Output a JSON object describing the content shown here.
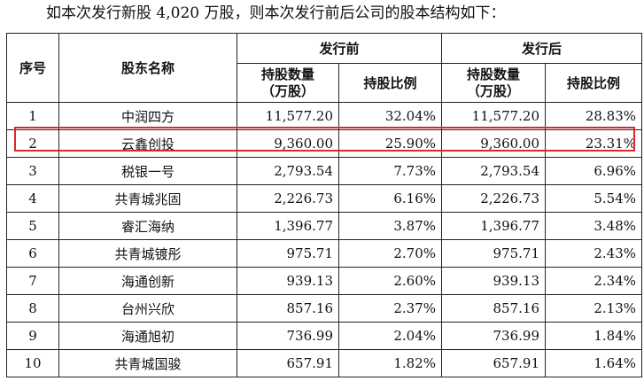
{
  "intro_text": "如本次发行新股 4,020 万股，则本次发行前后公司的股本结构如下：",
  "table": {
    "headers": {
      "seq": "序号",
      "name": "股东名称",
      "before": "发行前",
      "after": "发行后",
      "qty": "持股数量\n（万股）",
      "ratio": "持股比例"
    },
    "rows": [
      {
        "seq": "1",
        "name": "中润四方",
        "before_qty": "11,577.20",
        "before_ratio": "32.04%",
        "after_qty": "11,577.20",
        "after_ratio": "28.83%"
      },
      {
        "seq": "2",
        "name": "云鑫创投",
        "before_qty": "9,360.00",
        "before_ratio": "25.90%",
        "after_qty": "9,360.00",
        "after_ratio": "23.31%"
      },
      {
        "seq": "3",
        "name": "税银一号",
        "before_qty": "2,793.54",
        "before_ratio": "7.73%",
        "after_qty": "2,793.54",
        "after_ratio": "6.96%"
      },
      {
        "seq": "4",
        "name": "共青城兆固",
        "before_qty": "2,226.73",
        "before_ratio": "6.16%",
        "after_qty": "2,226.73",
        "after_ratio": "5.54%"
      },
      {
        "seq": "5",
        "name": "睿汇海纳",
        "before_qty": "1,396.77",
        "before_ratio": "3.87%",
        "after_qty": "1,396.77",
        "after_ratio": "3.48%"
      },
      {
        "seq": "6",
        "name": "共青城镀彤",
        "before_qty": "975.71",
        "before_ratio": "2.70%",
        "after_qty": "975.71",
        "after_ratio": "2.43%"
      },
      {
        "seq": "7",
        "name": "海通创新",
        "before_qty": "939.13",
        "before_ratio": "2.60%",
        "after_qty": "939.13",
        "after_ratio": "2.34%"
      },
      {
        "seq": "8",
        "name": "台州兴欣",
        "before_qty": "857.16",
        "before_ratio": "2.37%",
        "after_qty": "857.16",
        "after_ratio": "2.13%"
      },
      {
        "seq": "9",
        "name": "海通旭初",
        "before_qty": "736.99",
        "before_ratio": "2.04%",
        "after_qty": "736.99",
        "after_ratio": "1.84%"
      },
      {
        "seq": "10",
        "name": "共青城国骏",
        "before_qty": "657.91",
        "before_ratio": "1.82%",
        "after_qty": "657.91",
        "after_ratio": "1.64%"
      }
    ]
  },
  "highlight_color": "#e0262b"
}
